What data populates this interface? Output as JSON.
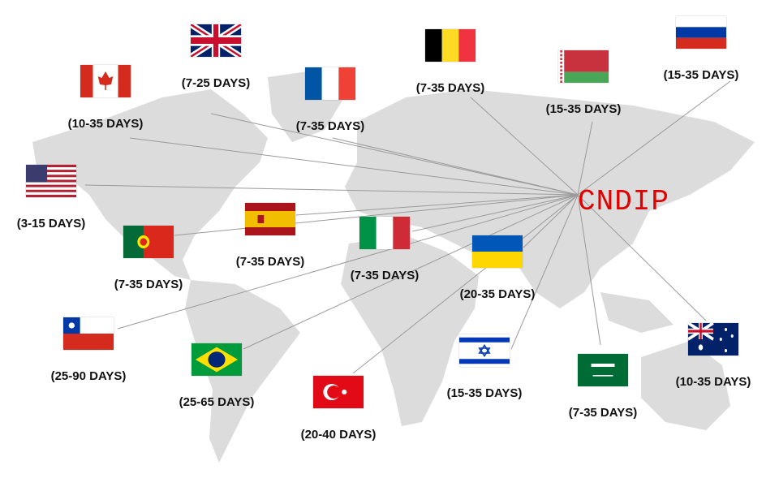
{
  "brand": "CNDIP",
  "colors": {
    "brand": "#e00000",
    "land": "#d9d9d9",
    "lines": "#9a9a9a"
  },
  "destinations": [
    {
      "flag": "uk-flag",
      "days": "(7-25 DAYS)"
    },
    {
      "flag": "canada-flag",
      "days": "(10-35 DAYS)"
    },
    {
      "flag": "france-flag",
      "days": "(7-35 DAYS)"
    },
    {
      "flag": "belgium-flag",
      "days": "(7-35 DAYS)"
    },
    {
      "flag": "belarus-flag",
      "days": "(15-35 DAYS)"
    },
    {
      "flag": "russia-flag",
      "days": "(15-35 DAYS)"
    },
    {
      "flag": "usa-flag",
      "days": "(3-15 DAYS)"
    },
    {
      "flag": "spain-flag",
      "days": "(7-35 DAYS)"
    },
    {
      "flag": "portugal-flag",
      "days": "(7-35 DAYS)"
    },
    {
      "flag": "italy-flag",
      "days": "(7-35 DAYS)"
    },
    {
      "flag": "ukraine-flag",
      "days": "(20-35 DAYS)"
    },
    {
      "flag": "chile-flag",
      "days": "(25-90 DAYS)"
    },
    {
      "flag": "brazil-flag",
      "days": "(25-65 DAYS)"
    },
    {
      "flag": "turkey-flag",
      "days": "(20-40 DAYS)"
    },
    {
      "flag": "israel-flag",
      "days": "(15-35 DAYS)"
    },
    {
      "flag": "saudi-arabia-flag",
      "days": "(7-35 DAYS)"
    },
    {
      "flag": "australia-flag",
      "days": "(10-35 DAYS)"
    }
  ]
}
